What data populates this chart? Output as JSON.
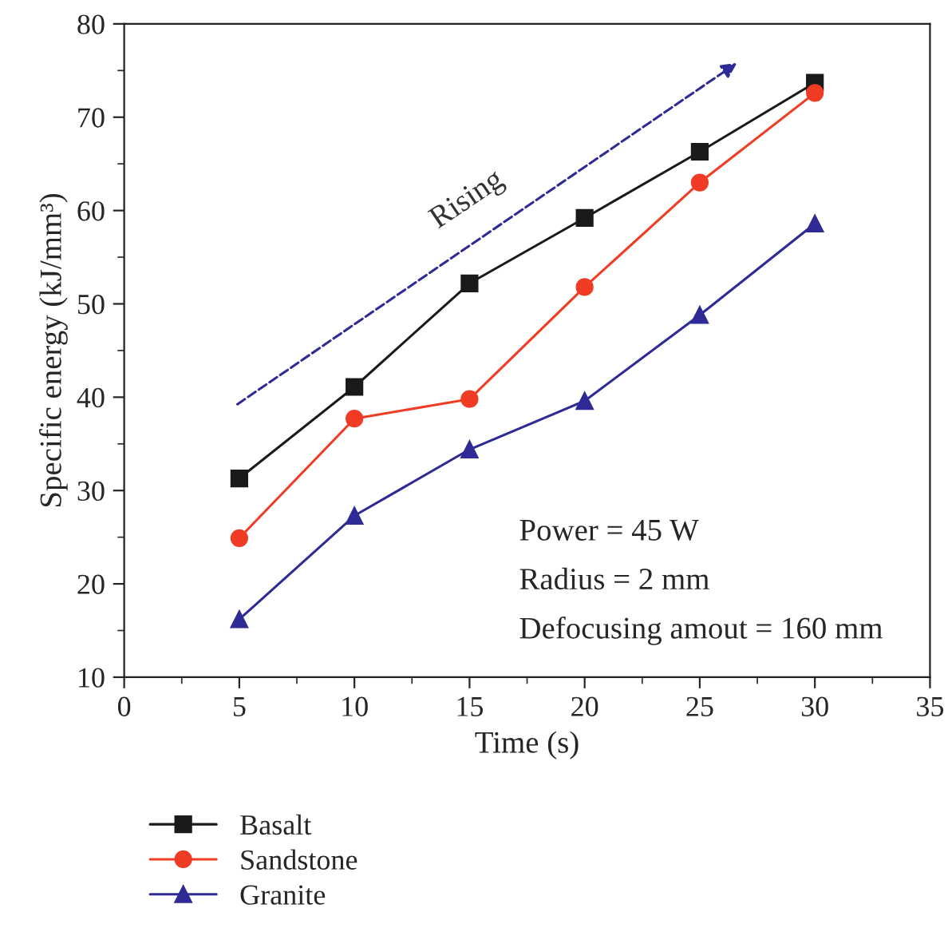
{
  "chart_data": {
    "type": "line",
    "xlabel": "Time (s)",
    "ylabel": "Specific energy (kJ/mm³)",
    "x": [
      5,
      10,
      15,
      20,
      25,
      30
    ],
    "series": [
      {
        "name": "Basalt",
        "color": "#1a1a1a",
        "marker": "square",
        "values": [
          31.3,
          41.1,
          52.2,
          59.2,
          66.3,
          73.7
        ]
      },
      {
        "name": "Sandstone",
        "color": "#f03c24",
        "marker": "circle",
        "values": [
          24.9,
          37.7,
          39.8,
          51.8,
          63.0,
          72.6
        ]
      },
      {
        "name": "Granite",
        "color": "#2e2a96",
        "marker": "triangle",
        "values": [
          16.2,
          27.3,
          34.4,
          39.6,
          48.8,
          58.6
        ]
      }
    ],
    "xlim": [
      0,
      35
    ],
    "xticks": [
      0,
      5,
      10,
      15,
      20,
      25,
      30,
      35
    ],
    "ylim": [
      10,
      80
    ],
    "yticks": [
      10,
      20,
      30,
      40,
      50,
      60,
      70,
      80
    ],
    "annotations": [
      "Rising",
      "Power = 45 W",
      "Radius = 2 mm",
      "Defocusing amout = 160 mm"
    ],
    "legend": "bottom",
    "grid": false,
    "line_style": "solid"
  }
}
